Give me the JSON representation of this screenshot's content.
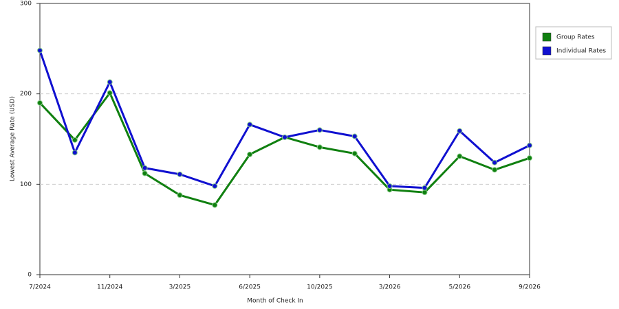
{
  "chart_data": {
    "type": "line",
    "x_label": "Month of Check In",
    "y_label": "Lowest Average Rate (USD)",
    "categories": [
      "7/2024",
      null,
      "11/2024",
      null,
      "3/2025",
      null,
      "6/2025",
      null,
      "10/2025",
      null,
      "3/2026",
      null,
      "5/2026",
      null,
      "9/2026"
    ],
    "series": [
      {
        "name": "Group Rates",
        "color": "#108010",
        "values": [
          190,
          149,
          201,
          112,
          88,
          77,
          133,
          152,
          141,
          134,
          94,
          91,
          131,
          116,
          129
        ]
      },
      {
        "name": "Individual Rates",
        "color": "#1010d0",
        "values": [
          248,
          135,
          213,
          118,
          111,
          98,
          166,
          152,
          160,
          153,
          98,
          96,
          159,
          124,
          143
        ]
      }
    ],
    "ylim": [
      0,
      300
    ],
    "yticks": [
      0,
      100,
      200,
      300
    ],
    "grid": true,
    "legend": "right"
  }
}
